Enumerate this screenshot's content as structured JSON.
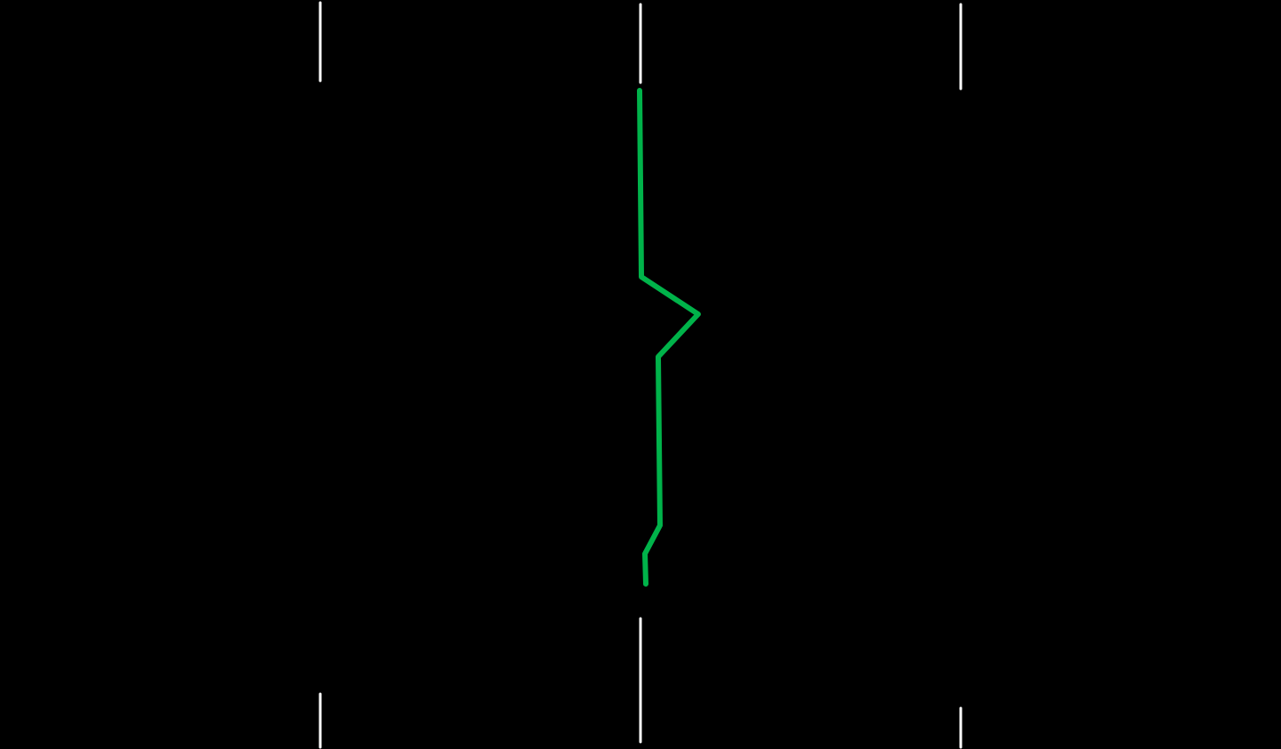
{
  "scene": {
    "background_color": "#000000",
    "lane_mark_color": "#ffffff",
    "route_color": "#00b34a"
  }
}
